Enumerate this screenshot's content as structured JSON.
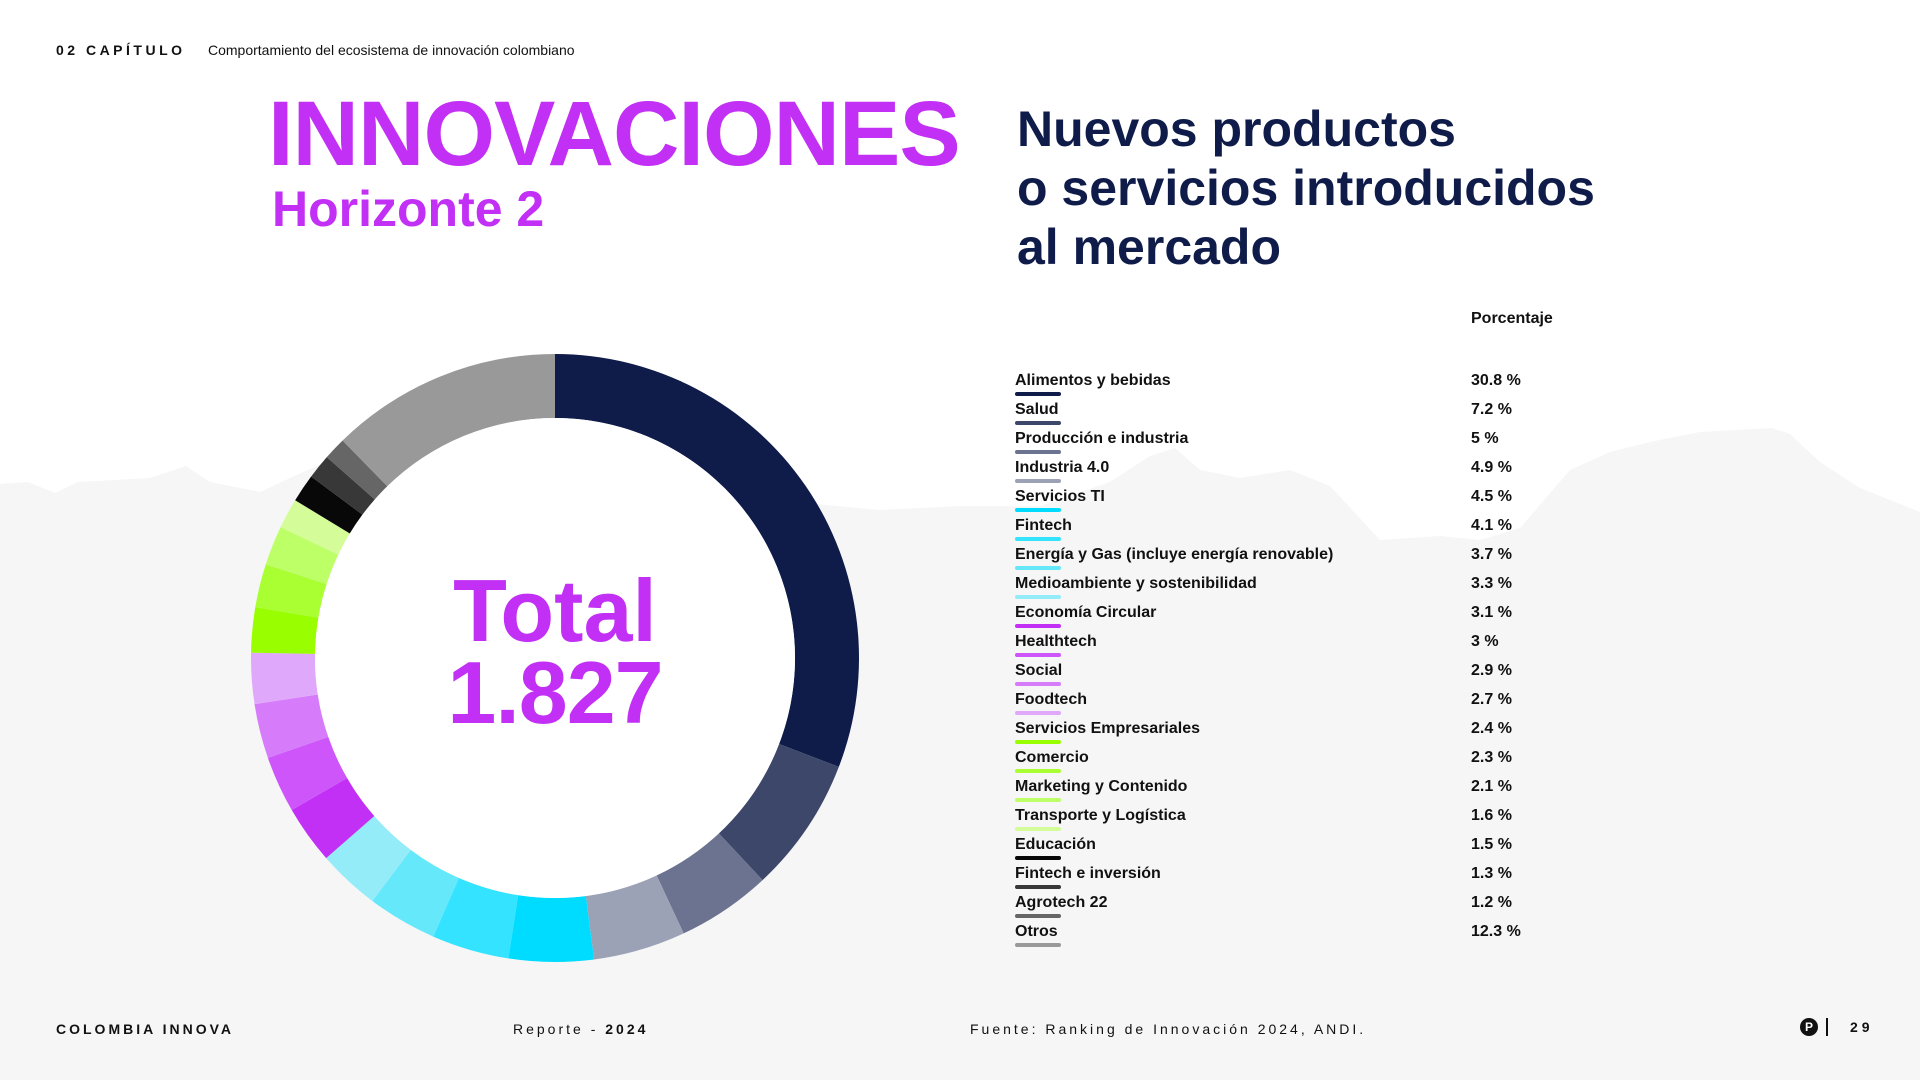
{
  "header": {
    "chapter": "02 CAPÍTULO",
    "chapter_subtitle": "Comportamiento del ecosistema de innovación colombiano"
  },
  "title": {
    "main": "INNOVACIONES",
    "sub": "Horizonte 2"
  },
  "chart_title_lines": [
    "Nuevos productos",
    "o servicios introducidos",
    "al mercado"
  ],
  "total": {
    "label": "Total",
    "value": "1.827"
  },
  "percentage_header": "Porcentaje",
  "colors": {
    "accent": "#c22ff5",
    "title_navy": "#0f1c4a",
    "background_mountains": "#f6f6f6"
  },
  "chart_data": {
    "type": "pie",
    "variant": "donut",
    "title": "Nuevos productos o servicios introducidos al mercado",
    "center_label": "Total 1.827",
    "unit": "%",
    "legend_placement": "right",
    "slices": [
      {
        "label": "Alimentos y bebidas",
        "value": 30.8,
        "display": "30.8 %",
        "color": "#0f1c4a"
      },
      {
        "label": "Salud",
        "value": 7.2,
        "display": "7.2 %",
        "color": "#3d4769"
      },
      {
        "label": "Producción e industria",
        "value": 5.0,
        "display": "5 %",
        "color": "#6b7390"
      },
      {
        "label": "Industria 4.0",
        "value": 4.9,
        "display": "4.9 %",
        "color": "#9ca2b5"
      },
      {
        "label": "Servicios TI",
        "value": 4.5,
        "display": "4.5 %",
        "color": "#00dcff"
      },
      {
        "label": "Fintech",
        "value": 4.1,
        "display": "4.1 %",
        "color": "#33e3ff"
      },
      {
        "label": "Energía y Gas (incluye energía renovable)",
        "value": 3.7,
        "display": "3.7 %",
        "color": "#66e8fb"
      },
      {
        "label": "Medioambiente y sostenibilidad",
        "value": 3.3,
        "display": "3.3 %",
        "color": "#94ecf9"
      },
      {
        "label": "Economía Circular",
        "value": 3.1,
        "display": "3.1 %",
        "color": "#c22ff5"
      },
      {
        "label": "Healthtech",
        "value": 3.0,
        "display": "3 %",
        "color": "#cd55fa"
      },
      {
        "label": "Social",
        "value": 2.9,
        "display": "2.9 %",
        "color": "#d67cfb"
      },
      {
        "label": "Foodtech",
        "value": 2.7,
        "display": "2.7 %",
        "color": "#e0a8fb"
      },
      {
        "label": "Servicios Empresariales",
        "value": 2.4,
        "display": "2.4 %",
        "color": "#99ff00"
      },
      {
        "label": "Comercio",
        "value": 2.3,
        "display": "2.3 %",
        "color": "#aaff33"
      },
      {
        "label": "Marketing y Contenido",
        "value": 2.1,
        "display": "2.1 %",
        "color": "#bdff66"
      },
      {
        "label": "Transporte y Logística",
        "value": 1.6,
        "display": "1.6 %",
        "color": "#d4fd99"
      },
      {
        "label": "Educación",
        "value": 1.5,
        "display": "1.5 %",
        "color": "#080808"
      },
      {
        "label": "Fintech e inversión",
        "value": 1.3,
        "display": "1.3 %",
        "color": "#383838"
      },
      {
        "label": "Agrotech 22",
        "value": 1.2,
        "display": "1.2 %",
        "color": "#666666"
      },
      {
        "label": "Otros",
        "value": 12.3,
        "display": "12.3 %",
        "color": "#999999"
      }
    ]
  },
  "footer": {
    "brand": "COLOMBIA INNOVA",
    "report_label": "Reporte - ",
    "report_year": "2024",
    "source": "Fuente: Ranking de Innovación 2024, ANDI.",
    "logo_letter": "P",
    "page_number": "29"
  }
}
